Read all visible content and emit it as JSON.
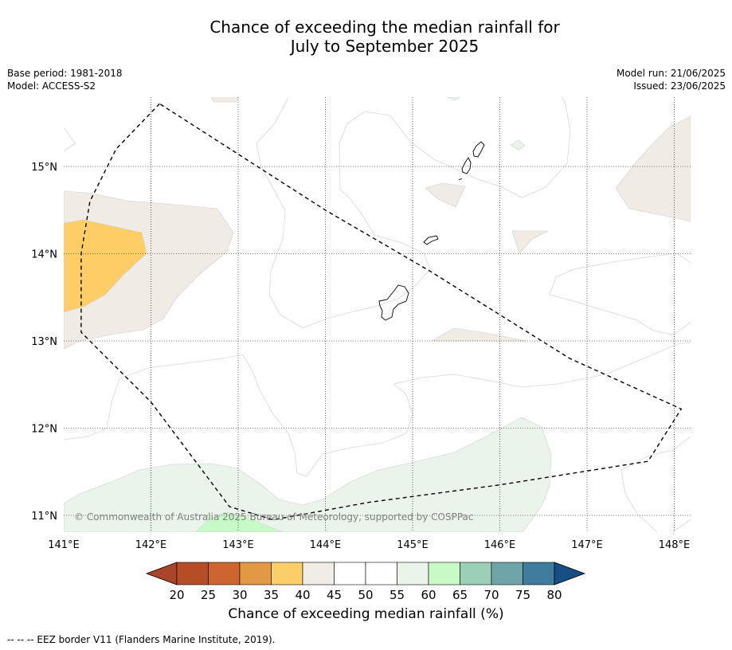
{
  "title": {
    "line1": "Chance of exceeding the median rainfall for",
    "line2": "July to September 2025"
  },
  "meta": {
    "base_period": "Base period: 1981-2018",
    "model": "Model: ACCESS-S2",
    "model_run": "Model run: 21/06/2025",
    "issued": "Issued: 23/06/2025"
  },
  "map": {
    "lon_ticks": [
      "141°E",
      "142°E",
      "143°E",
      "144°E",
      "145°E",
      "146°E",
      "147°E",
      "148°E"
    ],
    "lat_ticks": [
      "15°N",
      "14°N",
      "13°N",
      "12°N",
      "11°N"
    ],
    "lon_range": [
      141,
      148.2
    ],
    "lat_range": [
      10.8,
      15.8
    ],
    "copyright": "© Commonwealth of Australia 2025 Bureau of Meteorology, supported by COSPPac",
    "eez_border": [
      [
        142.1,
        15.72
      ],
      [
        141.6,
        15.2
      ],
      [
        141.3,
        14.6
      ],
      [
        141.2,
        14.0
      ],
      [
        141.2,
        13.1
      ],
      [
        142.0,
        12.3
      ],
      [
        142.9,
        11.1
      ],
      [
        143.4,
        10.95
      ],
      [
        144.5,
        11.15
      ],
      [
        146.0,
        11.35
      ],
      [
        147.7,
        11.62
      ],
      [
        148.08,
        12.22
      ],
      [
        146.8,
        12.8
      ],
      [
        145.2,
        13.8
      ],
      [
        144.0,
        14.5
      ],
      [
        142.1,
        15.72
      ]
    ],
    "colors": {
      "c40": "#ffcd66",
      "c45": "#f0ebe5",
      "c55": "#eaf4ea",
      "c60": "#c8fac8"
    }
  },
  "colorbar": {
    "title": "Chance of exceeding median rainfall (%)",
    "ticks": [
      "20",
      "25",
      "30",
      "35",
      "40",
      "45",
      "50",
      "55",
      "60",
      "65",
      "70",
      "75",
      "80"
    ],
    "colors": [
      "#a9452b",
      "#b54d27",
      "#cd6530",
      "#e39846",
      "#fcce67",
      "#f0ece6",
      "#ffffff",
      "#ffffff",
      "#eaf4ea",
      "#c8fac8",
      "#9ccfb8",
      "#6fa5a8",
      "#3f7c9e",
      "#174e85"
    ]
  },
  "footnote": "--  --  -- EEZ border V11 (Flanders Marine Institute, 2019)."
}
